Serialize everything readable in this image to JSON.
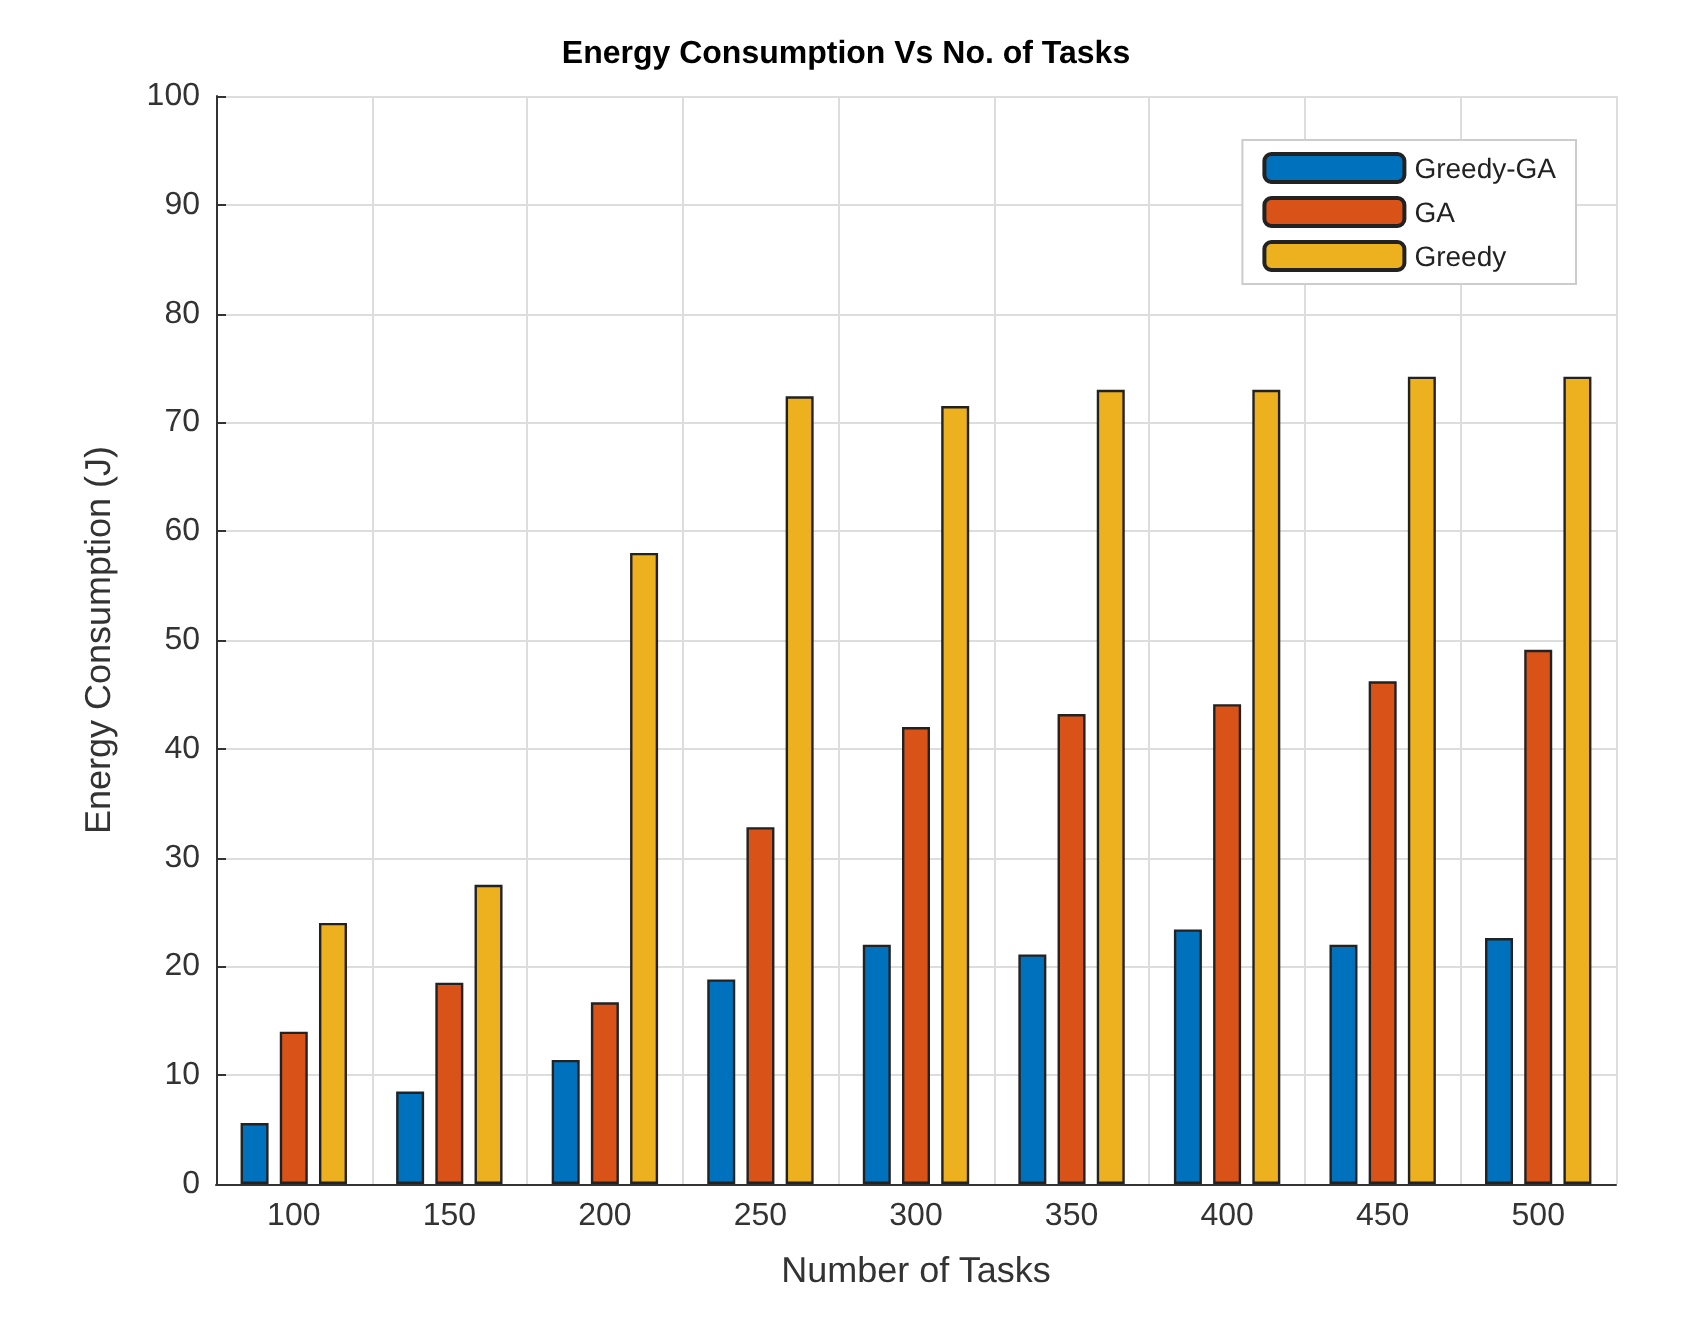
{
  "chart_data": {
    "type": "bar",
    "title": "Energy Consumption Vs No. of Tasks",
    "xlabel": "Number of Tasks",
    "ylabel": "Energy Consumption (J)",
    "categories": [
      "100",
      "150",
      "200",
      "250",
      "300",
      "350",
      "400",
      "450",
      "500"
    ],
    "series": [
      {
        "name": "Greedy-GA",
        "color": "#0072bd",
        "values": [
          5.6,
          8.5,
          11.4,
          18.8,
          22,
          21.1,
          23.4,
          22,
          22.6
        ]
      },
      {
        "name": "GA",
        "color": "#d95319",
        "values": [
          14,
          18.5,
          16.7,
          32.8,
          42,
          43.2,
          44.1,
          46.2,
          49.1
        ]
      },
      {
        "name": "Greedy",
        "color": "#edb120",
        "values": [
          24,
          27.5,
          58,
          72.4,
          71.5,
          73,
          73,
          74.2,
          74.2
        ]
      }
    ],
    "ylim": [
      0,
      100
    ],
    "yticks": [
      0,
      10,
      20,
      30,
      40,
      50,
      60,
      70,
      80,
      90,
      100
    ],
    "grid": true,
    "legend": "top right"
  }
}
